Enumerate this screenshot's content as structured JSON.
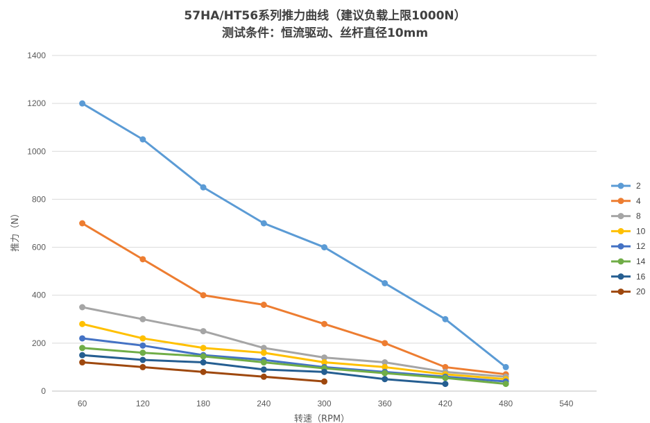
{
  "chart_data": {
    "type": "line",
    "title": "57HA/HT56系列推力曲线（建议负载上限1000N）",
    "subtitle": "测试条件：恒流驱动、丝杆直径10mm",
    "xlabel": "转速（RPM）",
    "ylabel": "推力（N）",
    "x": [
      60,
      120,
      180,
      240,
      300,
      360,
      420,
      480
    ],
    "x_ticks": [
      "60",
      "120",
      "180",
      "240",
      "300",
      "360",
      "420",
      "480",
      "540"
    ],
    "y_ticks": [
      "0",
      "200",
      "400",
      "600",
      "800",
      "1000",
      "1200",
      "1400"
    ],
    "ylim": [
      0,
      1400
    ],
    "grid": true,
    "legend_position": "right",
    "series": [
      {
        "name": "2",
        "color": "#5b9bd5",
        "values": [
          1200,
          1050,
          850,
          700,
          600,
          450,
          300,
          100
        ]
      },
      {
        "name": "4",
        "color": "#ed7d31",
        "values": [
          700,
          550,
          400,
          360,
          280,
          200,
          100,
          70
        ]
      },
      {
        "name": "8",
        "color": "#a5a5a5",
        "values": [
          350,
          300,
          250,
          180,
          140,
          120,
          80,
          60
        ]
      },
      {
        "name": "10",
        "color": "#ffc000",
        "values": [
          280,
          220,
          180,
          160,
          120,
          100,
          70,
          50
        ]
      },
      {
        "name": "12",
        "color": "#4472c4",
        "values": [
          220,
          190,
          150,
          130,
          100,
          80,
          60,
          40
        ]
      },
      {
        "name": "14",
        "color": "#70ad47",
        "values": [
          180,
          160,
          145,
          120,
          95,
          75,
          55,
          30
        ]
      },
      {
        "name": "16",
        "color": "#255e91",
        "values": [
          150,
          130,
          120,
          90,
          80,
          50,
          30,
          null
        ]
      },
      {
        "name": "20",
        "color": "#9e480e",
        "values": [
          120,
          100,
          80,
          60,
          40,
          null,
          null,
          null
        ]
      }
    ]
  }
}
